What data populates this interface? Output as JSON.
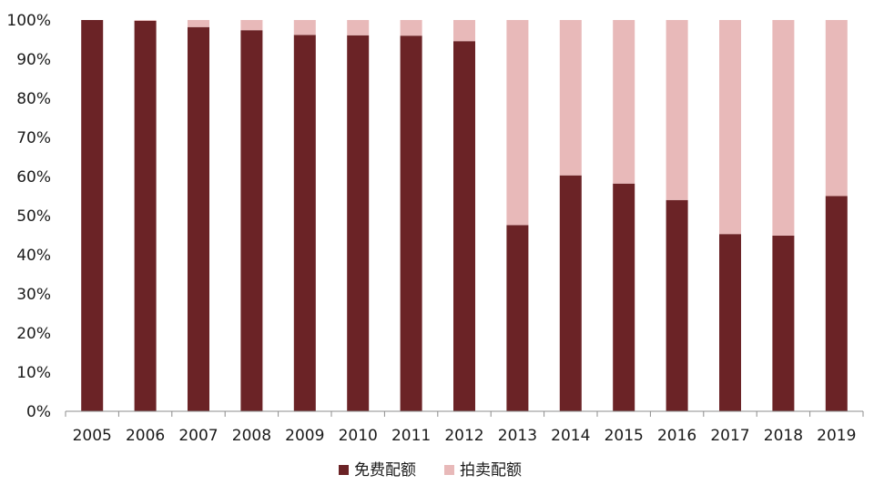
{
  "chart_data": {
    "type": "bar",
    "stacked": true,
    "percent_stacked": true,
    "categories": [
      "2005",
      "2006",
      "2007",
      "2008",
      "2009",
      "2010",
      "2011",
      "2012",
      "2013",
      "2014",
      "2015",
      "2016",
      "2017",
      "2018",
      "2019"
    ],
    "series": [
      {
        "name": "免费配额",
        "color": "#6b2326",
        "values": [
          100,
          99.8,
          98.2,
          97.4,
          96.2,
          96.1,
          96.0,
          94.6,
          47.6,
          60.3,
          58.2,
          54.0,
          45.3,
          44.9,
          55.0
        ]
      },
      {
        "name": "拍卖配额",
        "color": "#e8b9b9",
        "values": [
          0,
          0.2,
          1.8,
          2.6,
          3.8,
          3.9,
          4.0,
          5.4,
          52.4,
          39.7,
          41.8,
          46.0,
          54.7,
          55.1,
          45.0
        ]
      }
    ],
    "ylim": [
      0,
      100
    ],
    "yticks": [
      "0%",
      "10%",
      "20%",
      "30%",
      "40%",
      "50%",
      "60%",
      "70%",
      "80%",
      "90%",
      "100%"
    ],
    "grid": false,
    "legend_position": "bottom-center",
    "xlabel": "",
    "ylabel": ""
  }
}
